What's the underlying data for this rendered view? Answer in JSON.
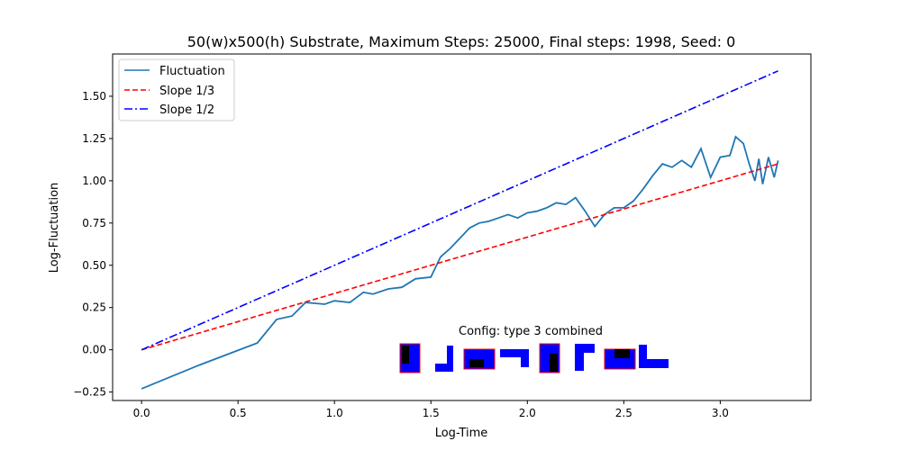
{
  "chart_data": {
    "type": "line",
    "title": "50(w)x500(h) Substrate, Maximum Steps: 25000, Final steps: 1998, Seed: 0",
    "xlabel": "Log-Time",
    "ylabel": "Log-Fluctuation",
    "xlim": [
      -0.15,
      3.47
    ],
    "ylim": [
      -0.3,
      1.75
    ],
    "x_ticks": [
      0.0,
      0.5,
      1.0,
      1.5,
      2.0,
      2.5,
      3.0
    ],
    "x_tick_labels": [
      "0.0",
      "0.5",
      "1.0",
      "1.5",
      "2.0",
      "2.5",
      "3.0"
    ],
    "y_ticks": [
      -0.25,
      0.0,
      0.25,
      0.5,
      0.75,
      1.0,
      1.25,
      1.5
    ],
    "y_tick_labels": [
      "−0.25",
      "0.00",
      "0.25",
      "0.50",
      "0.75",
      "1.00",
      "1.25",
      "1.50"
    ],
    "grid": false,
    "legend_position": "top-left",
    "series": [
      {
        "name": "Fluctuation",
        "color": "#1f77b4",
        "style": "solid",
        "x": [
          0.0,
          0.3,
          0.6,
          0.7,
          0.78,
          0.85,
          0.95,
          1.0,
          1.08,
          1.15,
          1.2,
          1.28,
          1.35,
          1.42,
          1.5,
          1.55,
          1.6,
          1.65,
          1.7,
          1.75,
          1.8,
          1.85,
          1.9,
          1.95,
          2.0,
          2.05,
          2.1,
          2.15,
          2.2,
          2.25,
          2.3,
          2.35,
          2.4,
          2.45,
          2.5,
          2.55,
          2.6,
          2.65,
          2.7,
          2.75,
          2.8,
          2.85,
          2.9,
          2.95,
          3.0,
          3.05,
          3.08,
          3.12,
          3.15,
          3.18,
          3.2,
          3.22,
          3.25,
          3.28,
          3.3
        ],
        "y": [
          -0.23,
          -0.09,
          0.04,
          0.18,
          0.2,
          0.28,
          0.27,
          0.29,
          0.28,
          0.34,
          0.33,
          0.36,
          0.37,
          0.42,
          0.43,
          0.55,
          0.6,
          0.66,
          0.72,
          0.75,
          0.76,
          0.78,
          0.8,
          0.78,
          0.81,
          0.82,
          0.84,
          0.87,
          0.86,
          0.9,
          0.82,
          0.73,
          0.8,
          0.84,
          0.84,
          0.88,
          0.95,
          1.03,
          1.1,
          1.08,
          1.12,
          1.08,
          1.19,
          1.02,
          1.14,
          1.15,
          1.26,
          1.22,
          1.1,
          1.0,
          1.13,
          0.98,
          1.14,
          1.02,
          1.12
        ]
      },
      {
        "name": "Slope 1/3",
        "color": "#ff0000",
        "style": "dashed",
        "x": [
          0.0,
          3.3
        ],
        "y": [
          0.0,
          1.1
        ]
      },
      {
        "name": "Slope 1/2",
        "color": "#0000ff",
        "style": "dashdot",
        "x": [
          0.0,
          3.3
        ],
        "y": [
          0.0,
          1.65
        ]
      }
    ],
    "annotation": "Config:  type 3 combined"
  },
  "config_colors": {
    "block": "#0000ff",
    "hole": "#000000",
    "frame": "#ff0000"
  }
}
